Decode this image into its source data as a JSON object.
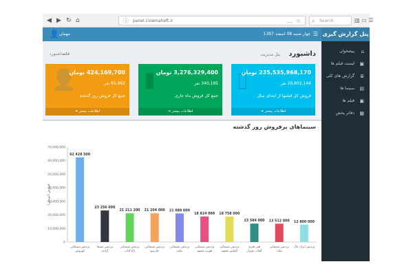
{
  "browser": {
    "url": "panel.cinemaheft.ir",
    "search_placeholder": "Search",
    "nav_icons": [
      "back-icon",
      "forward-icon",
      "reload-icon",
      "home-icon"
    ]
  },
  "sidebar": {
    "brand": "پنل گزارش گیری",
    "items": [
      {
        "label": "پیشخوان",
        "icon": "home-icon"
      },
      {
        "label": "لیست فیلم ها",
        "icon": "film-icon"
      },
      {
        "label": "گزارش های کلی",
        "icon": "report-icon"
      },
      {
        "label": "سینما ها",
        "icon": "cinema-icon"
      },
      {
        "label": "فیلم ها",
        "icon": "film-icon"
      },
      {
        "label": "دفاتر پخش",
        "icon": "office-icon"
      }
    ]
  },
  "topbar": {
    "user": "مهمان",
    "date": "چهار شنبه 08 اسفند 1397"
  },
  "header": {
    "title": "داشبورد",
    "subtitle": "پنل مدیریت",
    "breadcrumb_home": "خانه",
    "breadcrumb_current": "داشبورد"
  },
  "boxes": [
    {
      "amount": "235,535,968,170 تومان",
      "count": "26,902,144 نفر",
      "desc": "فروش کل فیلمها از ابتدای سال",
      "footer": "اطلاعات بیشتر",
      "icon": "shopping-bag-icon",
      "color": "#00c0ef"
    },
    {
      "amount": "3,276,329,400 تومان",
      "count": "340,185 نفر",
      "desc": "جمع کل فروش ماه جاری",
      "footer": "اطلاعات بیشتر",
      "icon": "bar-chart-icon",
      "color": "#00a65a"
    },
    {
      "amount": "424,169,700 تومان",
      "count": "65,982 نفر",
      "desc": "جمع کل فروش روز گذشته",
      "footer": "اطلاعات بیشتر",
      "icon": "user-plus-icon",
      "color": "#f39c12"
    }
  ],
  "chart_data": {
    "type": "bar",
    "title": "سینماهای پرفروش روز گذشته",
    "ylabel": "فروش (تومان)",
    "ylim": [
      0,
      70000000
    ],
    "yticks": [
      "0",
      "10,000,000",
      "20,000,000",
      "30,000,000",
      "40,000,000",
      "50,000,000",
      "60,000,000",
      "70,000,000"
    ],
    "grid": false,
    "categories": [
      "پردیس سینمایی کوروش",
      "پردیس سینما آزادی",
      "پردیس سینمایی باغ کتاب",
      "پردیس سینمایی چارسو",
      "پردیس سینمایی ملت",
      "پردیس سینمایی هویزه مشهد",
      "پردیس سینمایی الماس مشهد",
      "هنر تجربه آفتاب شیراز",
      "پردیس سینمایی ملت",
      "پردیس ایران مال"
    ],
    "values": [
      62428500,
      23256000,
      21211200,
      21204000,
      21088000,
      18824000,
      18758000,
      13584000,
      13512000,
      12800000
    ],
    "labels": [
      "62 428 500",
      "23 256 000",
      "21 211 200",
      "21 204 000",
      "21 088 000",
      "18 824 000",
      "18 758 000",
      "13 584 000",
      "13 512 000",
      "12 800 000"
    ],
    "colors": [
      "#6aaef0",
      "#34373f",
      "#67d35f",
      "#f5a25d",
      "#8589e8",
      "#ea4f82",
      "#e5dc55",
      "#2f8f84",
      "#e24a5b",
      "#8ee0e3"
    ]
  }
}
